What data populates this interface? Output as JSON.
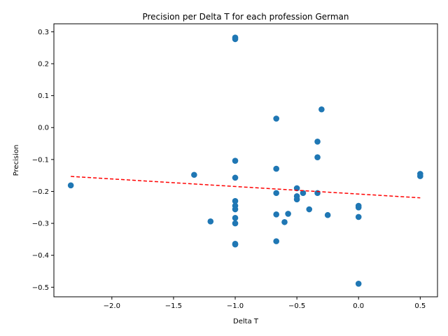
{
  "chart_data": {
    "type": "scatter",
    "title": "Precision per Delta T for each profession German",
    "xlabel": "Delta T",
    "ylabel": "Precision",
    "xlim": [
      -2.47,
      0.64
    ],
    "ylim": [
      -0.53,
      0.325
    ],
    "xticks": [
      -2.0,
      -1.5,
      -1.0,
      -0.5,
      0.0,
      0.5
    ],
    "xtick_labels": [
      "−2.0",
      "−1.5",
      "−1.0",
      "−0.5",
      "0.0",
      "0.5"
    ],
    "yticks": [
      0.3,
      0.2,
      0.1,
      0.0,
      -0.1,
      -0.2,
      -0.3,
      -0.4,
      -0.5
    ],
    "ytick_labels": [
      "0.3",
      "0.2",
      "0.1",
      "0.0",
      "−0.1",
      "−0.2",
      "−0.3",
      "−0.4",
      "−0.5"
    ],
    "grid": false,
    "point_color": "#1f77b4",
    "trend_color": "#ff0000",
    "points": [
      {
        "x": -1.0,
        "y": 0.282
      },
      {
        "x": -1.0,
        "y": 0.277
      },
      {
        "x": -0.3,
        "y": 0.057
      },
      {
        "x": -0.667,
        "y": 0.028
      },
      {
        "x": -0.333,
        "y": -0.044
      },
      {
        "x": -0.333,
        "y": -0.093
      },
      {
        "x": -1.0,
        "y": -0.104
      },
      {
        "x": -0.667,
        "y": -0.129
      },
      {
        "x": -1.333,
        "y": -0.148
      },
      {
        "x": -1.0,
        "y": -0.157
      },
      {
        "x": 0.5,
        "y": -0.145
      },
      {
        "x": 0.5,
        "y": -0.152
      },
      {
        "x": -2.333,
        "y": -0.181
      },
      {
        "x": -0.5,
        "y": -0.19
      },
      {
        "x": -0.667,
        "y": -0.205
      },
      {
        "x": -0.45,
        "y": -0.205
      },
      {
        "x": -0.333,
        "y": -0.205
      },
      {
        "x": -0.5,
        "y": -0.215
      },
      {
        "x": -0.5,
        "y": -0.225
      },
      {
        "x": -1.0,
        "y": -0.23
      },
      {
        "x": -1.0,
        "y": -0.245
      },
      {
        "x": 0.0,
        "y": -0.245
      },
      {
        "x": 0.0,
        "y": -0.25
      },
      {
        "x": -1.0,
        "y": -0.256
      },
      {
        "x": -0.4,
        "y": -0.256
      },
      {
        "x": -0.571,
        "y": -0.27
      },
      {
        "x": -0.667,
        "y": -0.272
      },
      {
        "x": -0.25,
        "y": -0.274
      },
      {
        "x": 0.0,
        "y": -0.28
      },
      {
        "x": -1.0,
        "y": -0.283
      },
      {
        "x": -1.2,
        "y": -0.294
      },
      {
        "x": -0.6,
        "y": -0.296
      },
      {
        "x": -1.0,
        "y": -0.3
      },
      {
        "x": -0.667,
        "y": -0.356
      },
      {
        "x": -1.0,
        "y": -0.364
      },
      {
        "x": -1.0,
        "y": -0.366
      },
      {
        "x": 0.0,
        "y": -0.489
      }
    ],
    "trendline": {
      "x": [
        -2.333,
        0.5
      ],
      "y": [
        -0.153,
        -0.22
      ]
    }
  }
}
